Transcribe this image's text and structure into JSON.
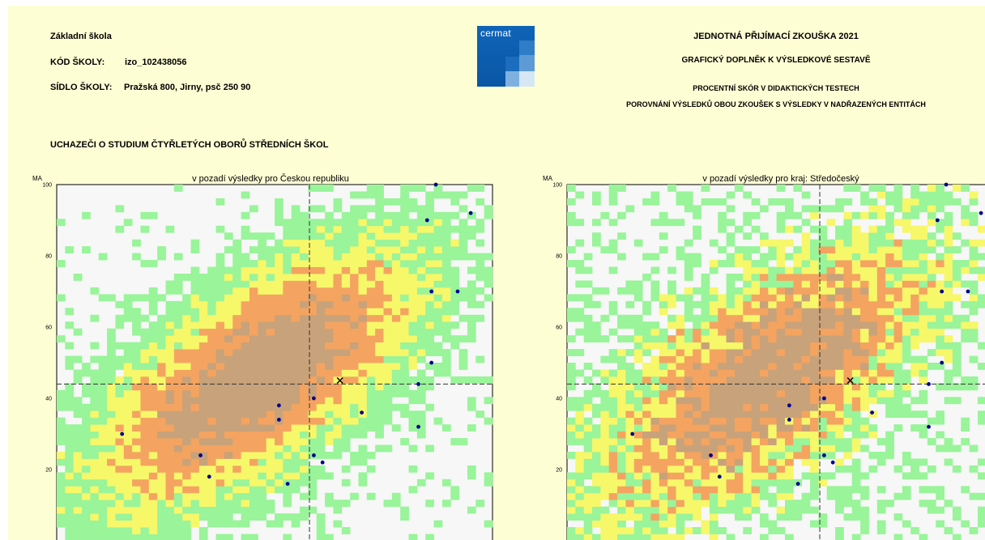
{
  "header_left": {
    "school_label": "Základní škola",
    "code_key": "KÓD ŠKOLY:",
    "code_value": "izo_102438056",
    "address_key": "SÍDLO ŠKOLY:",
    "address_value": "Pražská 800, Jirny, psč 250 90"
  },
  "logo": {
    "text": "cermat"
  },
  "header_right": {
    "title": "JEDNOTNÁ PŘIJÍMACÍ ZKOUŠKA 2021",
    "subtitle": "GRAFICKÝ DOPLNĚK K VÝSLEDKOVÉ SESTAVĚ",
    "line3": "PROCENTNÍ SKÓR V DIDAKTICKÝCH TESTECH",
    "line4": "POROVNÁNÍ VÝSLEDKŮ OBOU ZKOUŠEK S VÝSLEDKY V NADŘAZENÝCH ENTITÁCH"
  },
  "section_title": "UCHAZEČI O STUDIUM ČTYŘLETÝCH OBORŮ STŘEDNÍCH ŠKOL",
  "colors": {
    "background": "#fefed5",
    "plot_bg": "#f7f7f7",
    "density_low": "#99f49a",
    "density_mid": "#f7f76a",
    "density_high": "#f4a460",
    "density_top": "#c8a27a",
    "point": "#00008b",
    "logo_blue": "#0f64b7"
  },
  "chart_data": [
    {
      "type": "scatter",
      "title": "v pozadí výsledky pro Českou republiku",
      "ylabel": "MA",
      "xlabel": "",
      "ylim": [
        0,
        100
      ],
      "xlim": [
        0,
        100
      ],
      "yticks": [
        20,
        40,
        60,
        80,
        100
      ],
      "grid": false,
      "background_density": "heatmap of national results (green = low, yellow, orange, brown = high)",
      "reference_lines": {
        "x": 58,
        "y": 44
      },
      "mean_marker": {
        "x": 65,
        "y": 45
      },
      "points": [
        {
          "x": 87,
          "y": 100
        },
        {
          "x": 95,
          "y": 92
        },
        {
          "x": 85,
          "y": 90
        },
        {
          "x": 86,
          "y": 70
        },
        {
          "x": 92,
          "y": 70
        },
        {
          "x": 86,
          "y": 50
        },
        {
          "x": 83,
          "y": 44
        },
        {
          "x": 83,
          "y": 32
        },
        {
          "x": 70,
          "y": 36
        },
        {
          "x": 59,
          "y": 40
        },
        {
          "x": 51,
          "y": 38
        },
        {
          "x": 51,
          "y": 34
        },
        {
          "x": 15,
          "y": 30
        },
        {
          "x": 33,
          "y": 24
        },
        {
          "x": 35,
          "y": 18
        },
        {
          "x": 59,
          "y": 24
        },
        {
          "x": 61,
          "y": 22
        },
        {
          "x": 53,
          "y": 16
        }
      ]
    },
    {
      "type": "scatter",
      "title": "v pozadí výsledky pro kraj: Středočeský",
      "ylabel": "MA",
      "xlabel": "",
      "ylim": [
        0,
        100
      ],
      "xlim": [
        0,
        100
      ],
      "yticks": [
        20,
        40,
        60,
        80,
        100
      ],
      "grid": false,
      "background_density": "heatmap of regional results (green = low, yellow, orange, brown = high)",
      "reference_lines": {
        "x": 58,
        "y": 44
      },
      "mean_marker": {
        "x": 65,
        "y": 45
      },
      "points": [
        {
          "x": 87,
          "y": 100
        },
        {
          "x": 95,
          "y": 92
        },
        {
          "x": 85,
          "y": 90
        },
        {
          "x": 86,
          "y": 70
        },
        {
          "x": 92,
          "y": 70
        },
        {
          "x": 86,
          "y": 50
        },
        {
          "x": 83,
          "y": 44
        },
        {
          "x": 83,
          "y": 32
        },
        {
          "x": 70,
          "y": 36
        },
        {
          "x": 59,
          "y": 40
        },
        {
          "x": 51,
          "y": 38
        },
        {
          "x": 51,
          "y": 34
        },
        {
          "x": 15,
          "y": 30
        },
        {
          "x": 33,
          "y": 24
        },
        {
          "x": 35,
          "y": 18
        },
        {
          "x": 59,
          "y": 24
        },
        {
          "x": 61,
          "y": 22
        },
        {
          "x": 53,
          "y": 16
        }
      ]
    }
  ]
}
